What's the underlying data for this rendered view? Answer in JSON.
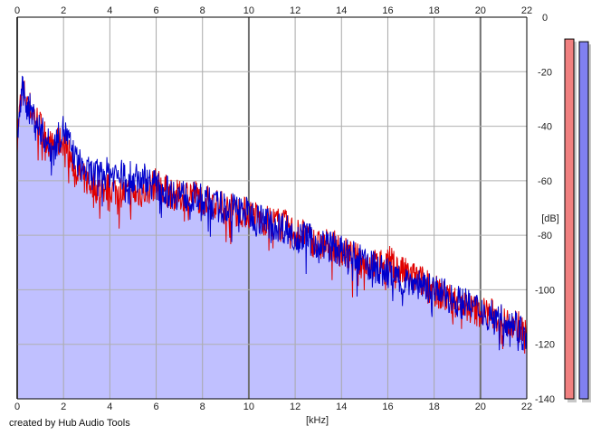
{
  "chart_data": {
    "type": "line",
    "xlabel": "[kHz]",
    "ylabel": "[dB]",
    "xlim": [
      0,
      22
    ],
    "ylim": [
      -140,
      0
    ],
    "x_ticks": [
      "0",
      "2",
      "4",
      "6",
      "8",
      "10",
      "12",
      "14",
      "16",
      "18",
      "20",
      "22"
    ],
    "y_ticks": [
      "0",
      "-20",
      "-40",
      "-60",
      "-80",
      "-100",
      "-120",
      "-140"
    ],
    "grid": true,
    "legend": "none",
    "series": [
      {
        "color": "#e00000",
        "x": [
          0,
          0.2,
          0.5,
          1,
          1.5,
          2,
          2.5,
          3,
          3.5,
          4,
          4.5,
          5,
          5.5,
          6,
          6.5,
          7,
          7.5,
          8,
          8.5,
          9,
          9.5,
          10,
          10.5,
          11,
          11.5,
          12,
          12.5,
          13,
          13.5,
          14,
          14.5,
          15,
          15.5,
          16,
          16.5,
          17,
          17.5,
          18,
          18.5,
          19,
          19.5,
          20,
          20.5,
          21,
          21.5,
          22
        ],
        "values": [
          -44,
          -26,
          -32,
          -40,
          -48,
          -45,
          -56,
          -60,
          -63,
          -63,
          -64,
          -65,
          -64,
          -61,
          -64,
          -66,
          -64,
          -67,
          -68,
          -70,
          -71,
          -72,
          -74,
          -75,
          -76,
          -79,
          -80,
          -84,
          -83,
          -86,
          -88,
          -90,
          -91,
          -89,
          -93,
          -95,
          -97,
          -100,
          -103,
          -104,
          -107,
          -108,
          -109,
          -112,
          -112,
          -117
        ]
      },
      {
        "color": "#0000cc",
        "x": [
          0,
          0.2,
          0.5,
          1,
          1.5,
          2,
          2.5,
          3,
          3.5,
          4,
          4.5,
          5,
          5.5,
          6,
          6.5,
          7,
          7.5,
          8,
          8.5,
          9,
          9.5,
          10,
          10.5,
          11,
          11.5,
          12,
          12.5,
          13,
          13.5,
          14,
          14.5,
          15,
          15.5,
          16,
          16.5,
          17,
          17.5,
          18,
          18.5,
          19,
          19.5,
          20,
          20.5,
          21,
          21.5,
          22
        ],
        "values": [
          -45,
          -27,
          -33,
          -41,
          -49,
          -41,
          -52,
          -57,
          -58,
          -57,
          -58,
          -59,
          -59,
          -62,
          -64,
          -65,
          -66,
          -67,
          -69,
          -70,
          -70,
          -72,
          -74,
          -76,
          -77,
          -80,
          -81,
          -83,
          -84,
          -86,
          -88,
          -90,
          -92,
          -94,
          -96,
          -97,
          -98,
          -100,
          -102,
          -104,
          -106,
          -107,
          -109,
          -111,
          -112,
          -119
        ]
      }
    ],
    "fill_area_color": "#c0c0ff",
    "level_meters": [
      {
        "color": "#f08080",
        "level_db": -8
      },
      {
        "color": "#8080f0",
        "level_db": -9
      }
    ]
  },
  "footer": {
    "credit": "created by Hub Audio Tools"
  }
}
